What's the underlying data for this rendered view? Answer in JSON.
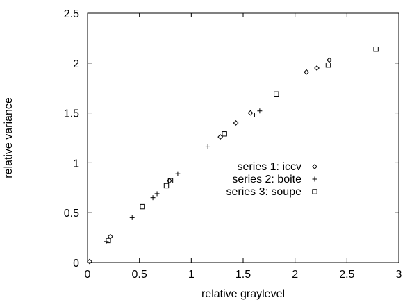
{
  "chart_data": {
    "type": "scatter",
    "title": "",
    "xlabel": "relative graylevel",
    "ylabel": "relative variance",
    "xlim": [
      0,
      3
    ],
    "ylim": [
      0,
      2.5
    ],
    "x_ticks": [
      0,
      0.5,
      1,
      1.5,
      2,
      2.5,
      3
    ],
    "y_ticks": [
      0,
      0.5,
      1,
      1.5,
      2,
      2.5
    ],
    "x_tick_labels": [
      "0",
      "0.5",
      "1",
      "1.5",
      "2",
      "2.5",
      "3"
    ],
    "y_tick_labels": [
      "0",
      "0.5",
      "1",
      "1.5",
      "2",
      "2.5"
    ],
    "grid": false,
    "legend_position": "center",
    "series": [
      {
        "name": "series 1: iccv",
        "marker": "diamond",
        "x": [
          0.02,
          0.22,
          0.79,
          1.28,
          1.43,
          1.57,
          2.11,
          2.21,
          2.33
        ],
        "y": [
          0.01,
          0.26,
          0.82,
          1.26,
          1.4,
          1.5,
          1.91,
          1.95,
          2.03
        ]
      },
      {
        "name": "series 2: boite",
        "marker": "plus",
        "x": [
          0.18,
          0.43,
          0.63,
          0.67,
          0.87,
          1.16,
          1.61,
          1.66
        ],
        "y": [
          0.21,
          0.45,
          0.65,
          0.69,
          0.89,
          1.16,
          1.48,
          1.52
        ]
      },
      {
        "name": "series 3: soupe",
        "marker": "square",
        "x": [
          0.2,
          0.53,
          0.76,
          0.8,
          1.32,
          1.82,
          2.32,
          2.78
        ],
        "y": [
          0.22,
          0.56,
          0.77,
          0.82,
          1.29,
          1.69,
          1.98,
          2.14
        ]
      }
    ]
  }
}
